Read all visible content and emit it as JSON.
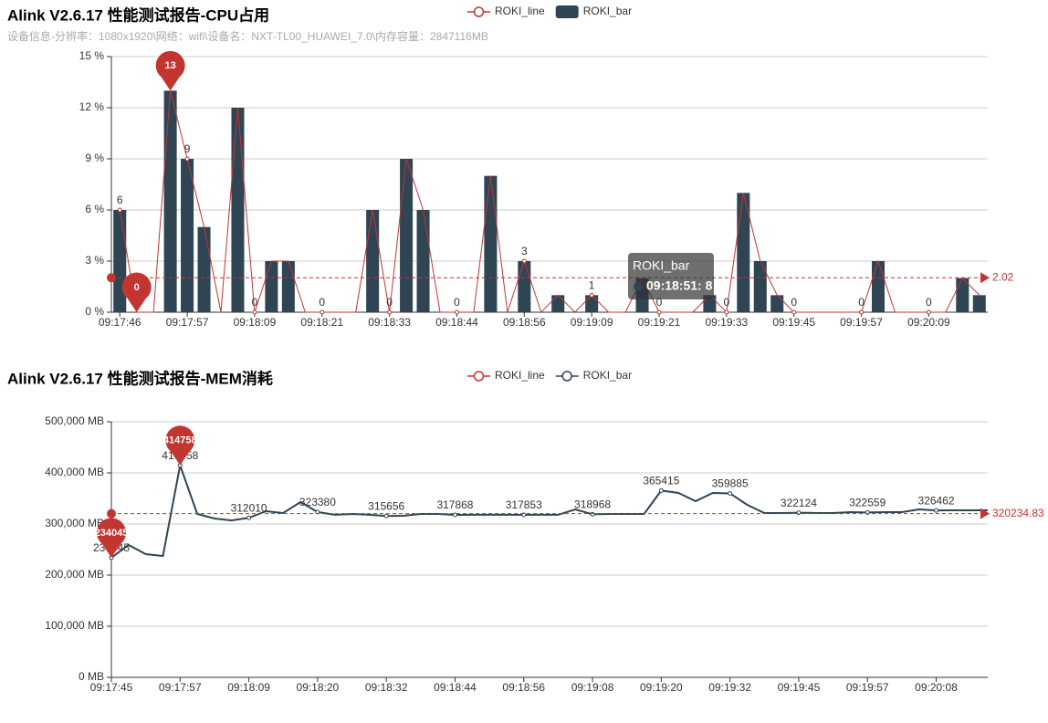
{
  "chart_data": [
    {
      "type": "bar",
      "title": "Alink V2.6.17 性能测试报告-CPU占用",
      "subtitle": "设备信息-分辨率：1080x1920\\网络：wifi\\设备名：NXT-TL00_HUAWEI_7.0\\内存容量：2847116MB",
      "legend": [
        {
          "name": "ROKI_line",
          "icon": "line",
          "color": "#c23531"
        },
        {
          "name": "ROKI_bar",
          "icon": "bar",
          "color": "#2f4554"
        }
      ],
      "categories": [
        "09:17:46",
        null,
        null,
        null,
        "09:17:57",
        null,
        null,
        null,
        "09:18:09",
        null,
        null,
        null,
        "09:18:21",
        null,
        null,
        null,
        "09:18:33",
        null,
        null,
        null,
        "09:18:44",
        null,
        null,
        null,
        "09:18:56",
        null,
        null,
        null,
        "09:19:09",
        null,
        null,
        null,
        "09:19:21",
        null,
        null,
        null,
        "09:19:33",
        null,
        null,
        null,
        "09:19:45",
        null,
        null,
        null,
        "09:19:57",
        null,
        null,
        null,
        "09:20:09",
        null,
        null,
        null
      ],
      "series": [
        {
          "type": "line",
          "color": "#c23531",
          "values": [
            6,
            0,
            0,
            13,
            9,
            5,
            0,
            12,
            0,
            3,
            3,
            0,
            0,
            0,
            0,
            6,
            0,
            9,
            6,
            0,
            0,
            0,
            8,
            0,
            3,
            0,
            1,
            0,
            1,
            0,
            0,
            2,
            0,
            0,
            0,
            1,
            0,
            7,
            3,
            1,
            0,
            0,
            0,
            0,
            0,
            3,
            0,
            0,
            0,
            0,
            2,
            1
          ]
        },
        {
          "type": "bar",
          "color": "#2f4554",
          "values": [
            6,
            0,
            0,
            13,
            9,
            5,
            0,
            12,
            0,
            3,
            3,
            0,
            0,
            0,
            0,
            6,
            0,
            9,
            6,
            0,
            0,
            0,
            8,
            0,
            3,
            0,
            1,
            0,
            1,
            0,
            0,
            2,
            0,
            0,
            0,
            1,
            0,
            7,
            3,
            1,
            0,
            0,
            0,
            0,
            0,
            3,
            0,
            0,
            0,
            0,
            2,
            1
          ]
        }
      ],
      "ylim": [
        0,
        15
      ],
      "yticks": [
        {
          "value": 0,
          "label": "0 %"
        },
        {
          "value": 3,
          "label": "3 %"
        },
        {
          "value": 6,
          "label": "6 %"
        },
        {
          "value": 9,
          "label": "9 %"
        },
        {
          "value": 12,
          "label": "12 %"
        },
        {
          "value": 15,
          "label": "15 %"
        }
      ],
      "grid": true,
      "mark_points": [
        {
          "index": 3,
          "value": 13
        },
        {
          "index": 1,
          "value": 0
        }
      ],
      "mark_color": "#c23531",
      "average": 2.02,
      "tooltip": {
        "title": "ROKI_bar",
        "text": "09:18:51: 8"
      }
    },
    {
      "type": "line",
      "title": "Alink V2.6.17 性能测试报告-MEM消耗",
      "legend": [
        {
          "name": "ROKI_line",
          "icon": "line",
          "color": "#c23531"
        },
        {
          "name": "ROKI_bar",
          "icon": "line",
          "color": "#2f4554"
        }
      ],
      "categories": [
        "09:17:45",
        null,
        null,
        null,
        "09:17:57",
        null,
        null,
        null,
        "09:18:09",
        null,
        null,
        null,
        "09:18:20",
        null,
        null,
        null,
        "09:18:32",
        null,
        null,
        null,
        "09:18:44",
        null,
        null,
        null,
        "09:18:56",
        null,
        null,
        null,
        "09:19:08",
        null,
        null,
        null,
        "09:19:20",
        null,
        null,
        null,
        "09:19:32",
        null,
        null,
        null,
        "09:19:45",
        null,
        null,
        null,
        "09:19:57",
        null,
        null,
        null,
        "09:20:08",
        null,
        null,
        null
      ],
      "series": [
        {
          "type": "line",
          "color": "#2f4554",
          "values": [
            234045,
            259000,
            241000,
            237500,
            414758,
            319600,
            310700,
            307000,
            312010,
            325000,
            321400,
            342800,
            323380,
            318000,
            319600,
            318000,
            315656,
            316000,
            319600,
            319600,
            317868,
            318000,
            318000,
            318000,
            317853,
            318000,
            318000,
            328500,
            318968,
            319600,
            319600,
            319600,
            365415,
            360700,
            344600,
            360700,
            359885,
            337500,
            321400,
            321400,
            322124,
            321400,
            321400,
            323200,
            322559,
            323200,
            323200,
            328500,
            326462,
            326800,
            326800,
            326800
          ]
        }
      ],
      "ylim": [
        0,
        500000
      ],
      "yticks": [
        {
          "value": 0,
          "label": "0 MB"
        },
        {
          "value": 100000,
          "label": "100,000 MB"
        },
        {
          "value": 200000,
          "label": "200,000 MB"
        },
        {
          "value": 300000,
          "label": "300,000 MB"
        },
        {
          "value": 400000,
          "label": "400,000 MB"
        },
        {
          "value": 500000,
          "label": "500,000 MB"
        }
      ],
      "grid": true,
      "mark_points": [
        {
          "index": 4,
          "value": 414758
        },
        {
          "index": 0,
          "value": 234045
        }
      ],
      "mark_color": "#c23531",
      "average": 320234.83
    }
  ]
}
